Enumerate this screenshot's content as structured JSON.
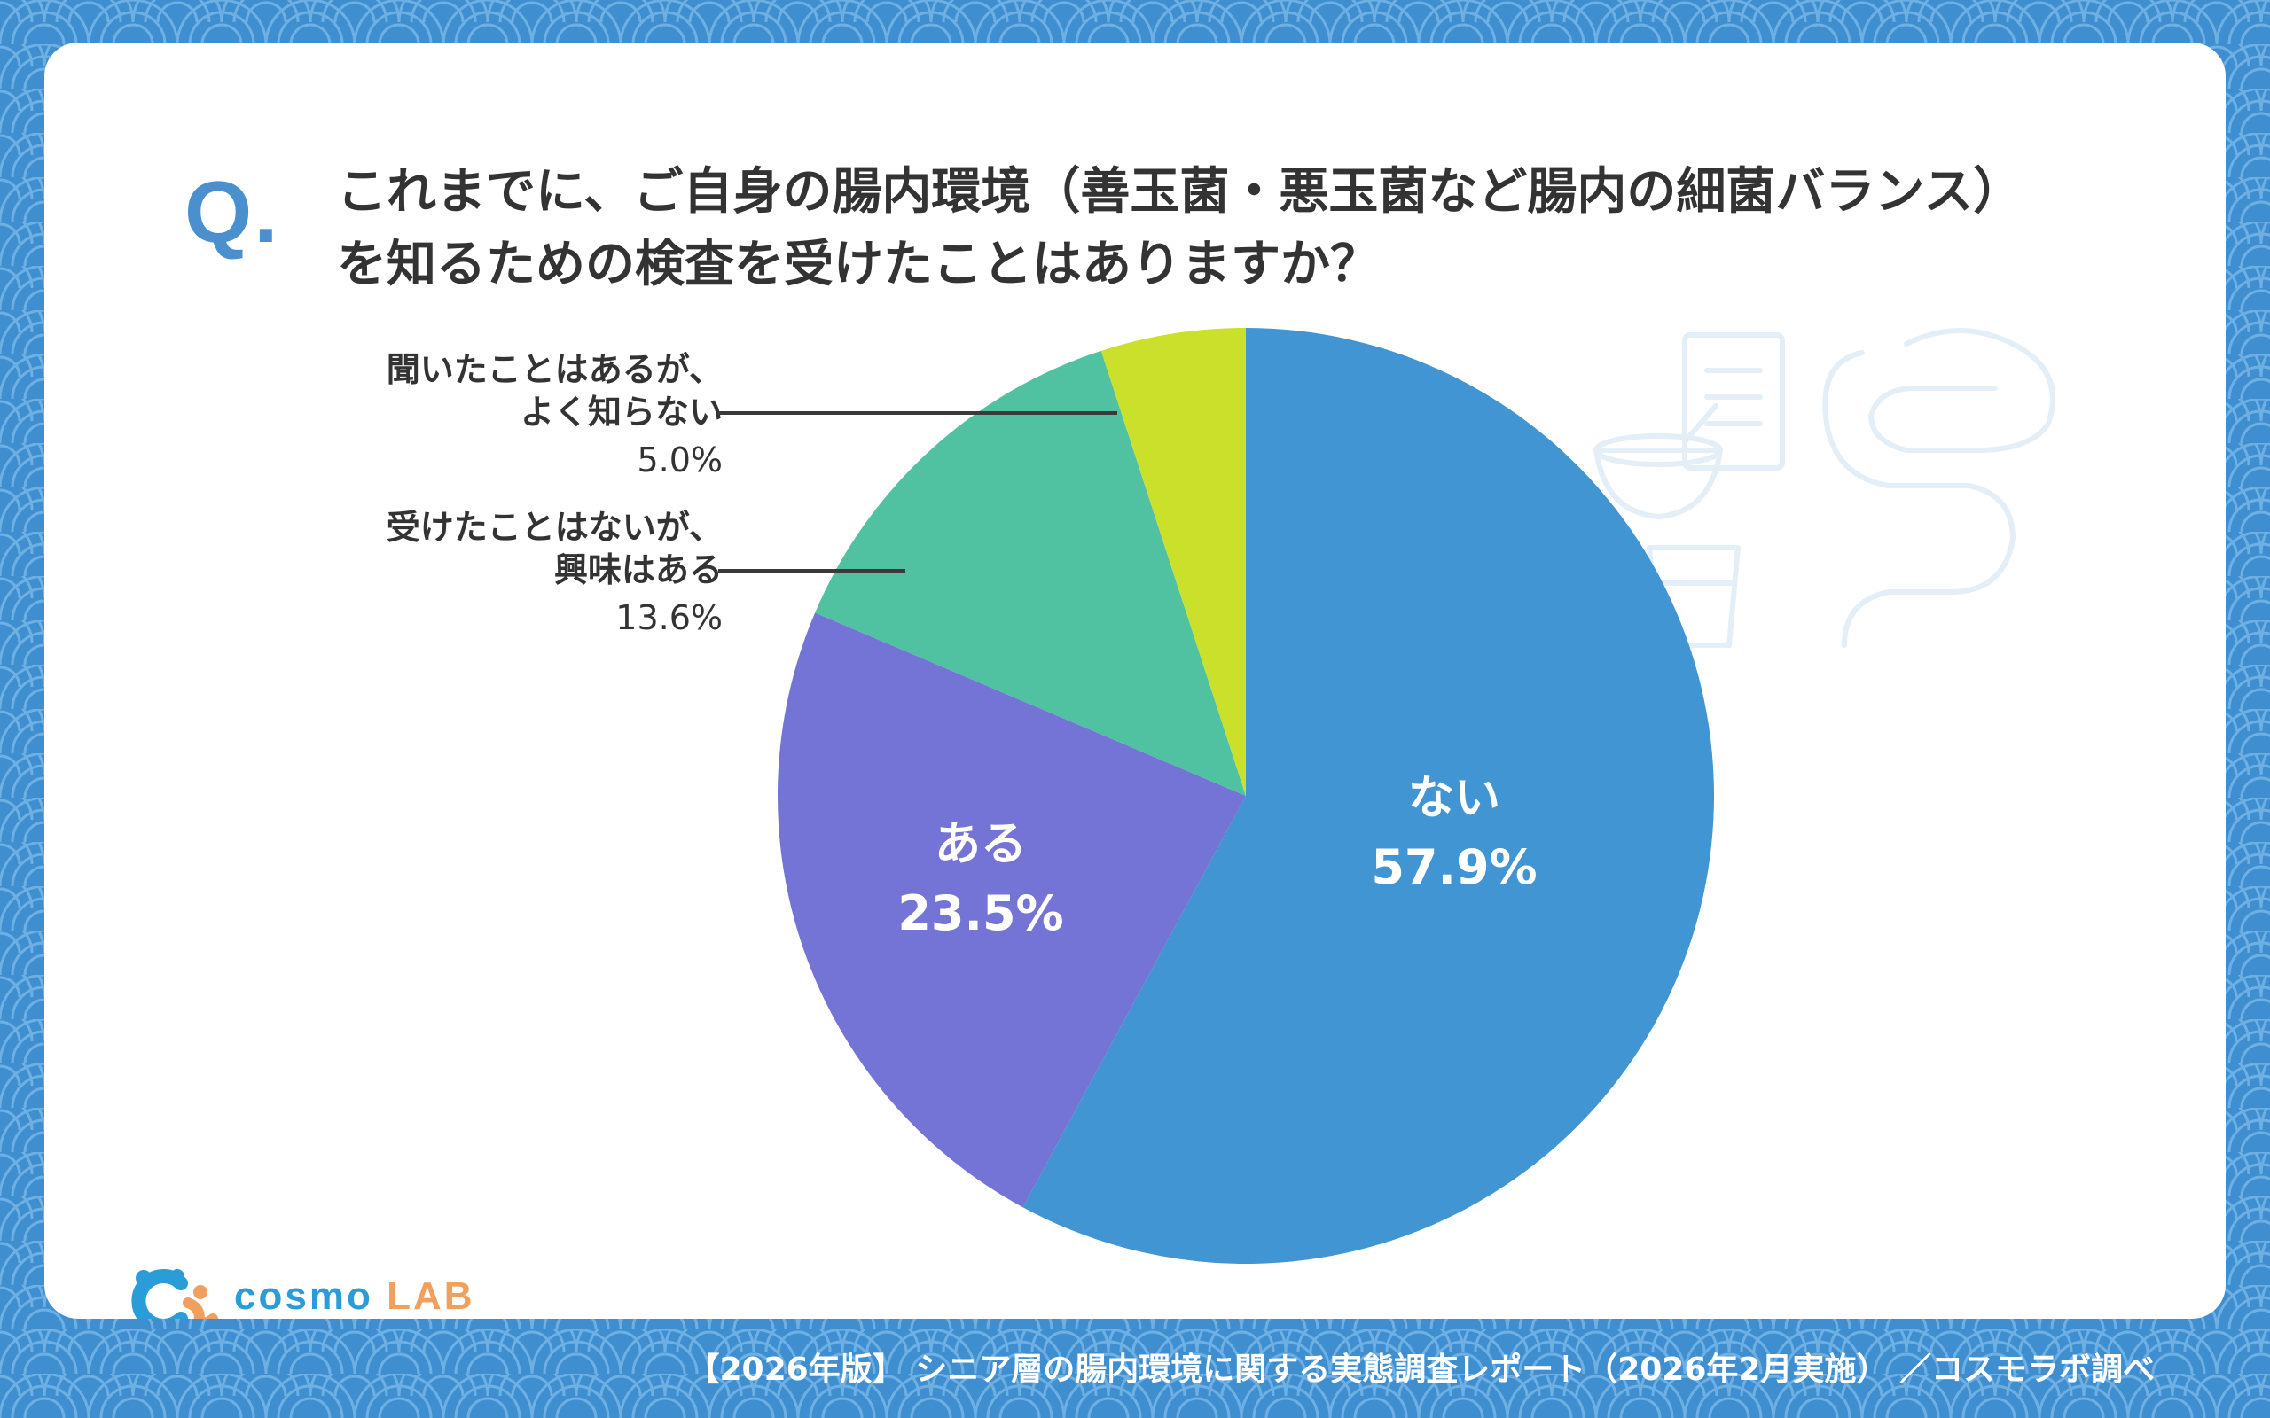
{
  "question": {
    "mark": "Q.",
    "line1": "これまでに、ご自身の腸内環境（善玉菌・悪玉菌など腸内の細菌バランス）",
    "line2": "を知るための検査を受けたことはありますか？"
  },
  "chart_data": {
    "type": "pie",
    "start": "12 o'clock",
    "direction": "clockwise",
    "slices": [
      {
        "label": "ない",
        "label_lines": [
          "ない"
        ],
        "value": 57.9,
        "value_label": "57.9%",
        "color": "#4195d3",
        "label_position": "inside"
      },
      {
        "label": "ある",
        "label_lines": [
          "ある"
        ],
        "value": 23.5,
        "value_label": "23.5%",
        "color": "#7474d6",
        "label_position": "inside"
      },
      {
        "label": "受けたことはないが、興味はある",
        "label_lines": [
          "受けたことはないが、",
          "興味はある"
        ],
        "value": 13.6,
        "value_label": "13.6%",
        "color": "#50c1a1",
        "label_position": "outside-left"
      },
      {
        "label": "聞いたことはあるが、よく知らない",
        "label_lines": [
          "聞いたことはあるが、",
          "よく知らない"
        ],
        "value": 5.0,
        "value_label": "5.0%",
        "color": "#cbe02b",
        "label_position": "outside-left"
      }
    ]
  },
  "logo": {
    "word1": "cosmo",
    "word2": "LAB",
    "color1": "#2a9dd8",
    "color2": "#f0a05e"
  },
  "footer": "【2026年版】 シニア層の腸内環境に関する実態調査レポート（2026年2月実施） ／コスモラボ調べ",
  "colors": {
    "background": "#3f8fd0",
    "card": "#ffffff",
    "text": "#333333",
    "accent": "#4a8fce"
  }
}
